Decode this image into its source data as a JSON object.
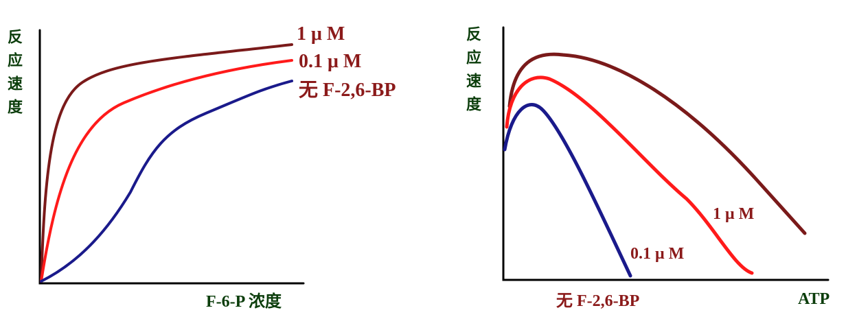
{
  "left": {
    "y_label": "反应速度",
    "x_label": "F-6-P 浓度",
    "curves": [
      "1 μ M",
      "0.1 μ M",
      "无 F-2,6-BP"
    ]
  },
  "right": {
    "y_label": "反应速度",
    "x_label": "ATP",
    "curves": [
      "1 μ M",
      "0.1 μ M",
      "无 F-2,6-BP"
    ]
  }
}
